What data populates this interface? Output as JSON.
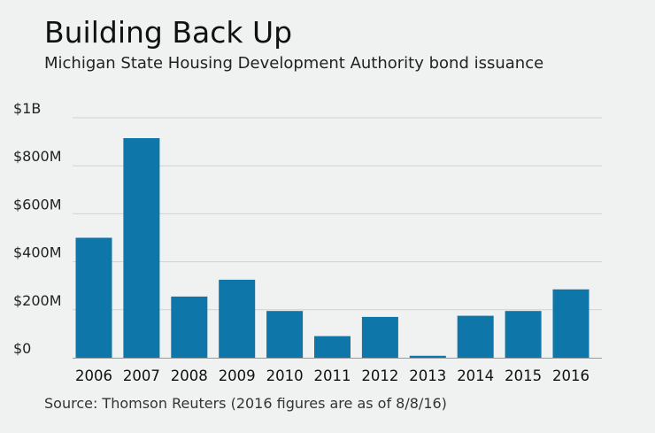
{
  "header": {
    "title": "Building Back Up",
    "subtitle": "Michigan State Housing Development Authority bond issuance"
  },
  "footer": {
    "source": "Source: Thomson Reuters (2016 figures are as of 8/8/16)"
  },
  "colors": {
    "bar": "#0e76a8",
    "grid": "#cfd2d3",
    "axis": "#9a9da0",
    "background": "#f0f1f1"
  },
  "chart_data": {
    "type": "bar",
    "title": "Building Back Up",
    "subtitle": "Michigan State Housing Development Authority bond issuance",
    "xlabel": "",
    "ylabel": "",
    "categories": [
      "2006",
      "2007",
      "2008",
      "2009",
      "2010",
      "2011",
      "2012",
      "2013",
      "2014",
      "2015",
      "2016"
    ],
    "values": [
      500,
      915,
      255,
      325,
      195,
      90,
      170,
      8,
      175,
      195,
      285
    ],
    "value_unit": "millions of dollars",
    "ylim": [
      0,
      1000
    ],
    "yticks": [
      0,
      200,
      400,
      600,
      800,
      1000
    ],
    "ytick_labels": [
      "$0",
      "$200M",
      "$400M",
      "$600M",
      "$800M",
      "$1B"
    ],
    "grid": true,
    "legend": "none",
    "source": "Source: Thomson Reuters (2016 figures are as of 8/8/16)"
  }
}
